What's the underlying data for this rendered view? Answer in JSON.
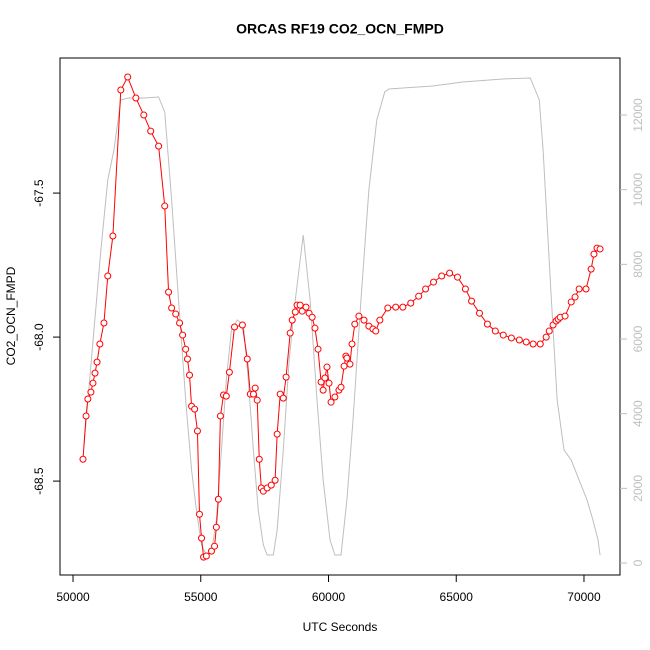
{
  "chart_data": {
    "type": "line",
    "title": "ORCAS RF19 CO2_OCN_FMPD",
    "xlabel": "UTC Seconds",
    "ylabel": "CO2_OCN_FMPD",
    "xlim": [
      49490,
      71410
    ],
    "ylim": [
      -68.826,
      -67.031
    ],
    "y2lim": [
      -321,
      13527
    ],
    "xticks": [
      50000,
      55000,
      60000,
      65000,
      70000
    ],
    "yticks": [
      -67.5,
      {
        "value": -68,
        "label": "-68.0"
      },
      -68.5
    ],
    "y2ticks": [
      0,
      2000,
      4000,
      6000,
      8000,
      10000,
      12000
    ],
    "y2tick_color": "#bebebe",
    "series": [
      {
        "color": "#bebebe",
        "axis": "y2",
        "markers": false,
        "x": [
          50430,
          50820,
          51090,
          51360,
          51600,
          51870,
          52180,
          52770,
          53350,
          53590,
          53860,
          54130,
          54410,
          54640,
          54830,
          55030,
          55220,
          55420,
          55610,
          55810,
          56000,
          56200,
          56430,
          56670,
          56860,
          57060,
          57250,
          57450,
          57600,
          57840,
          57990,
          58230,
          58460,
          58700,
          59010,
          59280,
          59550,
          59790,
          60060,
          60250,
          60490,
          60720,
          60960,
          61270,
          61580,
          61890,
          62200,
          62360,
          62910,
          64080,
          65250,
          66810,
          67900,
          68250,
          68400,
          68680,
          68950,
          69220,
          69500,
          69810,
          70120,
          70350,
          70550,
          70630
        ],
        "values": [
          3161,
          6242,
          8385,
          10260,
          11063,
          12403,
          12456,
          12456,
          12483,
          12081,
          9724,
          7045,
          4366,
          2491,
          1420,
          482,
          214,
          295,
          1152,
          3027,
          4902,
          6242,
          6509,
          6376,
          4902,
          3027,
          1420,
          482,
          214,
          214,
          884,
          3027,
          5438,
          7045,
          8786,
          7045,
          4366,
          2223,
          616,
          214,
          214,
          1688,
          3831,
          7045,
          9992,
          11867,
          12617,
          12697,
          12724,
          12778,
          12885,
          12966,
          12992,
          12403,
          11063,
          7581,
          4366,
          3027,
          2759,
          2223,
          1688,
          1152,
          616,
          214
        ]
      },
      {
        "color": "#ff0000",
        "markers": true,
        "x": [
          50390,
          50510,
          50580,
          50700,
          50780,
          50860,
          50940,
          51050,
          51210,
          51360,
          51560,
          51870,
          52140,
          52460,
          52770,
          53040,
          53350,
          53590,
          53740,
          53860,
          54020,
          54170,
          54290,
          54410,
          54480,
          54560,
          54640,
          54760,
          54870,
          54950,
          55030,
          55110,
          55220,
          55420,
          55540,
          55610,
          55690,
          55770,
          55890,
          56000,
          56120,
          56320,
          56630,
          56820,
          56940,
          57060,
          57130,
          57210,
          57290,
          57370,
          57450,
          57600,
          57760,
          57910,
          57990,
          58110,
          58230,
          58340,
          58500,
          58580,
          58700,
          58770,
          58890,
          58970,
          59120,
          59240,
          59360,
          59470,
          59590,
          59710,
          59790,
          59860,
          59940,
          60020,
          60100,
          60250,
          60410,
          60490,
          60610,
          60680,
          60720,
          60840,
          60920,
          61030,
          61190,
          61390,
          61580,
          61740,
          61850,
          62010,
          62320,
          62630,
          62910,
          63220,
          63530,
          63800,
          64110,
          64430,
          64740,
          65050,
          65360,
          65600,
          65910,
          66220,
          66530,
          66840,
          67160,
          67470,
          67740,
          68010,
          68290,
          68520,
          68640,
          68790,
          68910,
          68990,
          69070,
          69260,
          69500,
          69650,
          69810,
          70080,
          70280,
          70390,
          70510,
          70630
        ],
        "values": [
          -68.424,
          -68.274,
          -68.215,
          -68.191,
          -68.16,
          -68.125,
          -68.087,
          -68.024,
          -67.951,
          -67.788,
          -67.649,
          -67.142,
          -67.097,
          -67.17,
          -67.229,
          -67.285,
          -67.337,
          -67.545,
          -67.844,
          -67.899,
          -67.92,
          -67.951,
          -67.993,
          -68.042,
          -68.076,
          -68.132,
          -68.24,
          -68.25,
          -68.326,
          -68.615,
          -68.698,
          -68.764,
          -68.76,
          -68.743,
          -68.726,
          -68.66,
          -68.563,
          -68.274,
          -68.201,
          -68.205,
          -68.122,
          -67.965,
          -67.958,
          -68.076,
          -68.198,
          -68.198,
          -68.177,
          -68.219,
          -68.424,
          -68.524,
          -68.535,
          -68.524,
          -68.514,
          -68.497,
          -68.337,
          -68.198,
          -68.212,
          -68.139,
          -67.986,
          -67.941,
          -67.913,
          -67.889,
          -67.889,
          -67.91,
          -67.896,
          -67.917,
          -67.931,
          -67.969,
          -68.042,
          -68.156,
          -68.184,
          -68.142,
          -68.104,
          -68.16,
          -68.226,
          -68.208,
          -68.184,
          -68.174,
          -68.101,
          -68.066,
          -68.073,
          -68.094,
          -68.024,
          -67.955,
          -67.927,
          -67.941,
          -67.962,
          -67.972,
          -67.979,
          -67.941,
          -67.899,
          -67.896,
          -67.896,
          -67.882,
          -67.858,
          -67.833,
          -67.809,
          -67.788,
          -67.778,
          -67.792,
          -67.833,
          -67.875,
          -67.917,
          -67.955,
          -67.979,
          -67.993,
          -68.003,
          -68.01,
          -68.017,
          -68.024,
          -68.024,
          -68.0,
          -67.979,
          -67.958,
          -67.944,
          -67.938,
          -67.931,
          -67.927,
          -67.878,
          -67.861,
          -67.833,
          -67.833,
          -67.764,
          -67.712,
          -67.691,
          -67.694
        ]
      }
    ]
  }
}
